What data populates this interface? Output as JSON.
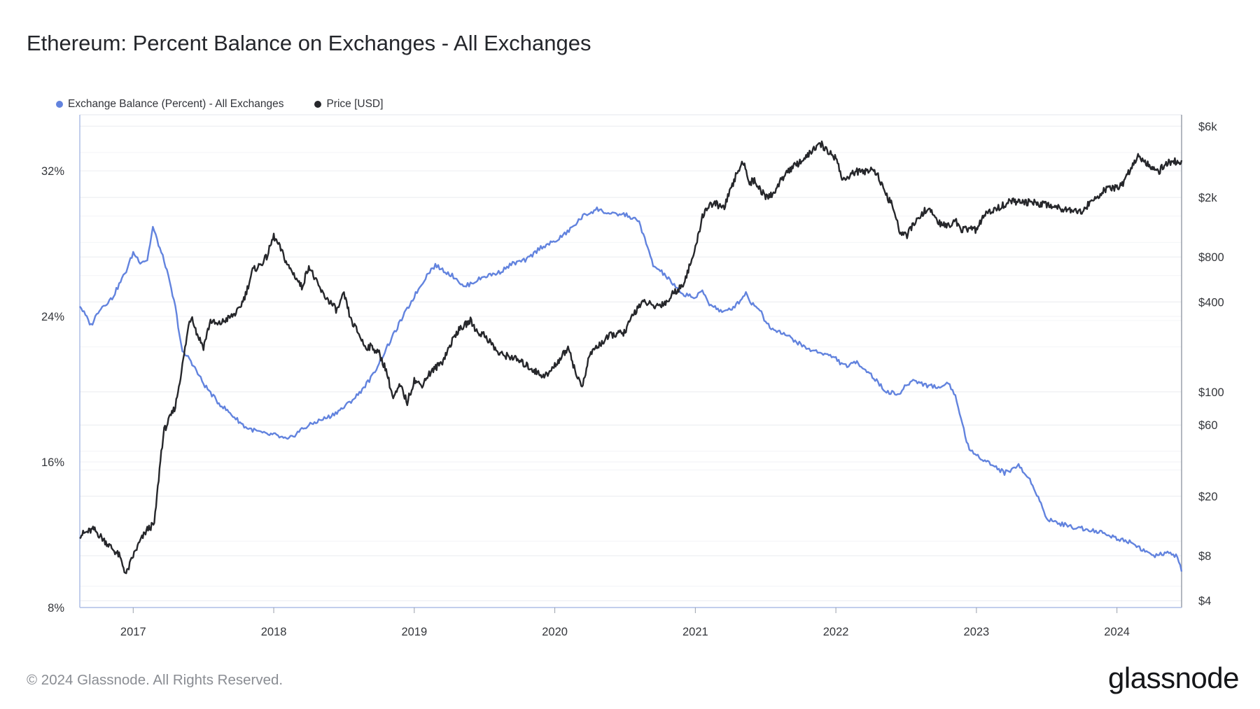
{
  "title": "Ethereum: Percent Balance on Exchanges - All Exchanges",
  "footer": {
    "copyright": "© 2024 Glassnode. All Rights Reserved.",
    "logo": "glassnode"
  },
  "colors": {
    "balance": "#6283de",
    "price": "#26272b",
    "grid": "#e9ebef",
    "axis_line": "#aebde6"
  },
  "chart_data": {
    "type": "line",
    "title": "Ethereum: Percent Balance on Exchanges - All Exchanges",
    "x_ticks": [
      "2017",
      "2018",
      "2019",
      "2020",
      "2021",
      "2022",
      "2023",
      "2024"
    ],
    "x_range": [
      2016.62,
      2024.46
    ],
    "y_left": {
      "label": "Exchange Balance (Percent)",
      "ticks": [
        "32%",
        "24%",
        "16%",
        "8%"
      ],
      "tick_values": [
        32,
        24,
        16,
        8
      ],
      "range": [
        8,
        35
      ]
    },
    "y_right": {
      "label": "Price [USD]",
      "scale": "log",
      "ticks": [
        "$6k",
        "$2k",
        "$800",
        "$400",
        "$100",
        "$60",
        "$20",
        "$8",
        "$4"
      ],
      "tick_values": [
        6000,
        2000,
        800,
        400,
        100,
        60,
        20,
        8,
        4
      ],
      "range": [
        3.6,
        7000
      ]
    },
    "legend_position": "top-left",
    "series": [
      {
        "name": "Exchange Balance (Percent) - All Exchanges",
        "axis": "left",
        "x": [
          2016.62,
          2016.7,
          2016.76,
          2016.85,
          2016.95,
          2017.0,
          2017.05,
          2017.1,
          2017.14,
          2017.2,
          2017.23,
          2017.3,
          2017.35,
          2017.4,
          2017.45,
          2017.5,
          2017.6,
          2017.7,
          2017.8,
          2017.95,
          2018.0,
          2018.1,
          2018.2,
          2018.3,
          2018.4,
          2018.5,
          2018.6,
          2018.7,
          2018.8,
          2018.9,
          2019.0,
          2019.1,
          2019.15,
          2019.3,
          2019.35,
          2019.5,
          2019.6,
          2019.7,
          2019.8,
          2019.9,
          2020.0,
          2020.1,
          2020.2,
          2020.3,
          2020.4,
          2020.5,
          2020.6,
          2020.7,
          2020.78,
          2020.85,
          2020.9,
          2020.95,
          2021.0,
          2021.05,
          2021.1,
          2021.2,
          2021.25,
          2021.3,
          2021.36,
          2021.4,
          2021.45,
          2021.5,
          2021.55,
          2021.6,
          2021.7,
          2021.8,
          2021.9,
          2022.0,
          2022.05,
          2022.1,
          2022.15,
          2022.25,
          2022.35,
          2022.45,
          2022.5,
          2022.55,
          2022.65,
          2022.75,
          2022.8,
          2022.85,
          2022.95,
          2023.0,
          2023.1,
          2023.2,
          2023.3,
          2023.4,
          2023.5,
          2023.6,
          2023.7,
          2023.8,
          2023.9,
          2024.0,
          2024.1,
          2024.2,
          2024.26,
          2024.35,
          2024.4,
          2024.43,
          2024.46
        ],
        "values": [
          24.6,
          23.5,
          24.4,
          25.0,
          26.5,
          27.5,
          27.0,
          27.1,
          28.9,
          27.5,
          26.8,
          24.5,
          22.0,
          21.7,
          21.0,
          20.3,
          19.3,
          18.6,
          17.9,
          17.5,
          17.5,
          17.2,
          17.8,
          18.2,
          18.5,
          19.0,
          19.7,
          20.7,
          22.2,
          23.7,
          25.1,
          26.4,
          26.8,
          26.1,
          25.6,
          26.2,
          26.4,
          26.9,
          27.1,
          27.8,
          28.1,
          28.7,
          29.5,
          29.9,
          29.6,
          29.6,
          29.2,
          26.8,
          26.3,
          25.7,
          25.2,
          25.2,
          25.0,
          25.4,
          24.7,
          24.2,
          24.4,
          24.7,
          25.3,
          24.7,
          24.5,
          23.7,
          23.3,
          23.2,
          22.7,
          22.2,
          22.0,
          21.7,
          21.3,
          21.3,
          21.5,
          20.8,
          19.9,
          19.7,
          20.2,
          20.5,
          20.2,
          20.1,
          20.4,
          19.6,
          16.6,
          16.4,
          15.9,
          15.4,
          15.8,
          14.8,
          12.9,
          12.6,
          12.4,
          12.3,
          12.1,
          11.8,
          11.6,
          11.1,
          10.8,
          11.0,
          10.9,
          10.8,
          10.0
        ]
      },
      {
        "name": "Price [USD]",
        "axis": "right",
        "x": [
          2016.62,
          2016.72,
          2016.8,
          2016.9,
          2016.95,
          2017.0,
          2017.05,
          2017.1,
          2017.15,
          2017.2,
          2017.22,
          2017.3,
          2017.35,
          2017.4,
          2017.42,
          2017.45,
          2017.5,
          2017.55,
          2017.6,
          2017.65,
          2017.7,
          2017.75,
          2017.8,
          2017.85,
          2017.9,
          2017.95,
          2018.0,
          2018.05,
          2018.1,
          2018.15,
          2018.2,
          2018.25,
          2018.3,
          2018.35,
          2018.4,
          2018.45,
          2018.5,
          2018.55,
          2018.6,
          2018.65,
          2018.7,
          2018.75,
          2018.8,
          2018.85,
          2018.9,
          2018.95,
          2019.0,
          2019.05,
          2019.1,
          2019.2,
          2019.3,
          2019.4,
          2019.45,
          2019.5,
          2019.55,
          2019.6,
          2019.7,
          2019.8,
          2019.9,
          2019.95,
          2020.0,
          2020.1,
          2020.15,
          2020.2,
          2020.25,
          2020.3,
          2020.4,
          2020.5,
          2020.55,
          2020.6,
          2020.65,
          2020.7,
          2020.8,
          2020.85,
          2020.9,
          2020.95,
          2021.0,
          2021.05,
          2021.1,
          2021.15,
          2021.2,
          2021.25,
          2021.3,
          2021.35,
          2021.38,
          2021.42,
          2021.5,
          2021.55,
          2021.6,
          2021.65,
          2021.7,
          2021.75,
          2021.8,
          2021.85,
          2021.9,
          2021.95,
          2022.0,
          2022.05,
          2022.1,
          2022.15,
          2022.2,
          2022.25,
          2022.3,
          2022.35,
          2022.4,
          2022.45,
          2022.5,
          2022.55,
          2022.6,
          2022.65,
          2022.7,
          2022.75,
          2022.8,
          2022.85,
          2022.9,
          2022.95,
          2023.0,
          2023.05,
          2023.1,
          2023.15,
          2023.2,
          2023.25,
          2023.3,
          2023.4,
          2023.5,
          2023.6,
          2023.7,
          2023.75,
          2023.8,
          2023.85,
          2023.9,
          2023.95,
          2024.0,
          2024.05,
          2024.1,
          2024.15,
          2024.2,
          2024.25,
          2024.3,
          2024.35,
          2024.4,
          2024.46
        ],
        "values": [
          11,
          12,
          10,
          8,
          6,
          8,
          10,
          12,
          13,
          40,
          55,
          80,
          150,
          300,
          320,
          250,
          200,
          300,
          280,
          300,
          320,
          350,
          450,
          650,
          700,
          800,
          1100,
          900,
          700,
          600,
          500,
          700,
          550,
          450,
          400,
          350,
          450,
          300,
          250,
          200,
          200,
          180,
          140,
          90,
          110,
          85,
          120,
          110,
          130,
          160,
          250,
          300,
          250,
          240,
          210,
          180,
          170,
          150,
          130,
          130,
          150,
          200,
          130,
          110,
          180,
          200,
          240,
          250,
          320,
          380,
          400,
          370,
          400,
          470,
          500,
          650,
          900,
          1500,
          1800,
          1800,
          1700,
          2200,
          3000,
          3500,
          2500,
          2600,
          2000,
          2100,
          2500,
          3000,
          3200,
          3500,
          3800,
          4300,
          4500,
          4000,
          3700,
          2600,
          2800,
          3000,
          2900,
          3200,
          2800,
          2100,
          1800,
          1200,
          1100,
          1300,
          1500,
          1700,
          1500,
          1300,
          1300,
          1400,
          1200,
          1250,
          1200,
          1500,
          1600,
          1700,
          1800,
          1900,
          1850,
          1850,
          1800,
          1700,
          1650,
          1600,
          1800,
          2000,
          2200,
          2300,
          2300,
          2500,
          3200,
          3800,
          3500,
          3200,
          3000,
          3400,
          3500,
          3400
        ]
      }
    ]
  }
}
